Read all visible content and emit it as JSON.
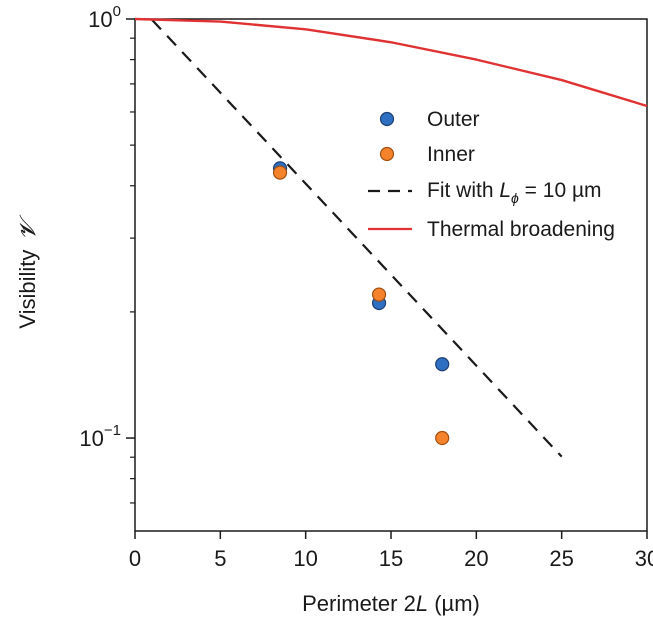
{
  "chart_data": {
    "type": "scatter",
    "x_axis": {
      "label_prefix": "Perimeter 2",
      "label_var": "L",
      "label_suffix": " (µm)",
      "range": [
        0,
        30
      ],
      "ticks": [
        0,
        5,
        10,
        15,
        20,
        25,
        30
      ],
      "tick_labels": [
        "0",
        "5",
        "10",
        "15",
        "20",
        "25",
        "30"
      ]
    },
    "y_axis": {
      "label": "Visibility",
      "label_symbol": "𝓥",
      "scale": "log",
      "range": [
        0.06,
        1.0
      ],
      "major_ticks": [
        {
          "value": 1.0,
          "base": "10",
          "exponent": "0"
        },
        {
          "value": 0.1,
          "base": "10",
          "exponent": "−1"
        }
      ],
      "minor_ticks": [
        0.07,
        0.08,
        0.09,
        0.2,
        0.3,
        0.4,
        0.5,
        0.6,
        0.7,
        0.8,
        0.9
      ]
    },
    "grid": false,
    "legend_position": "upper-right",
    "series": [
      {
        "name": "Outer",
        "kind": "points",
        "color": "#2e6fc2",
        "points": [
          {
            "x": 8.5,
            "y": 0.44
          },
          {
            "x": 14.3,
            "y": 0.21
          },
          {
            "x": 18.0,
            "y": 0.15
          }
        ]
      },
      {
        "name": "Inner",
        "kind": "points",
        "color": "#f5832b",
        "points": [
          {
            "x": 8.5,
            "y": 0.43
          },
          {
            "x": 14.3,
            "y": 0.22
          },
          {
            "x": 18.0,
            "y": 0.1
          }
        ]
      },
      {
        "name_text": "Fit  with ",
        "name_var": "L",
        "name_sub": "ϕ",
        "name_tail": " = 10 µm",
        "kind": "dashed-line",
        "color": "#1a1a1a",
        "function": "exp",
        "x_range": [
          1.0,
          25.0
        ],
        "y_at_x0": 1.1,
        "L_phi_um": 10
      },
      {
        "name": "Thermal broadening",
        "kind": "line",
        "color": "#e03232",
        "points": [
          {
            "x": 0,
            "y": 1.0
          },
          {
            "x": 5,
            "y": 0.986
          },
          {
            "x": 10,
            "y": 0.945
          },
          {
            "x": 15,
            "y": 0.88
          },
          {
            "x": 20,
            "y": 0.8
          },
          {
            "x": 25,
            "y": 0.715
          },
          {
            "x": 30,
            "y": 0.62
          }
        ]
      }
    ]
  }
}
